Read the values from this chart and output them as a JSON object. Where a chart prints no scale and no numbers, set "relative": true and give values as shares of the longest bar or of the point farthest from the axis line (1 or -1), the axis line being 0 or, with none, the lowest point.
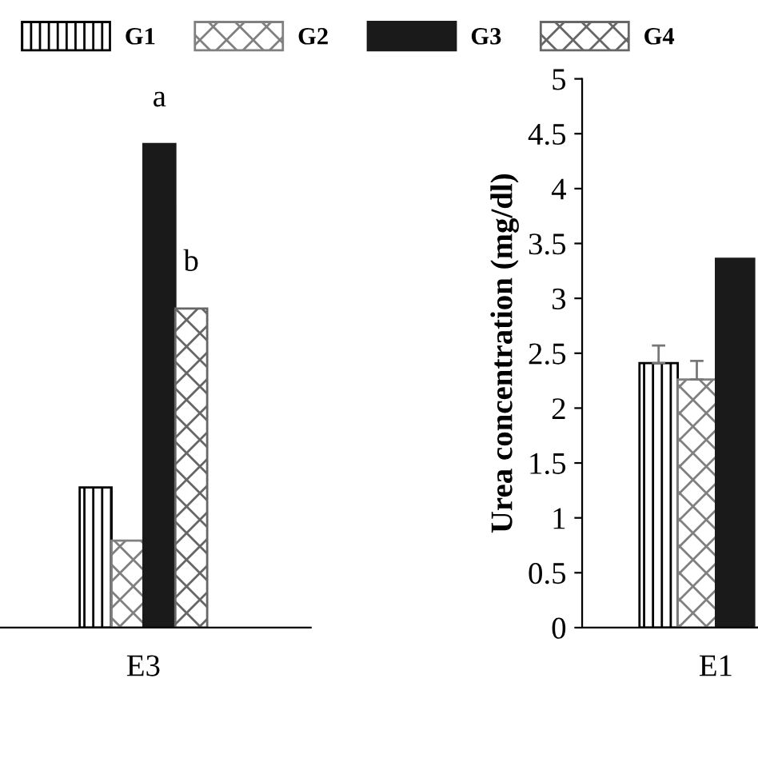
{
  "chart_data": [
    {
      "type": "bar",
      "relative": true,
      "categories": [
        "E3"
      ],
      "legend": "top",
      "series": [
        {
          "name": "G1",
          "color": "#000000",
          "values": [
            0.29
          ]
        },
        {
          "name": "G2",
          "color": "#808080",
          "values": [
            0.18
          ]
        },
        {
          "name": "G3",
          "color": "#1a1a1a",
          "values": [
            1.0
          ]
        },
        {
          "name": "G4",
          "color": "#666666",
          "values": [
            0.66
          ]
        }
      ],
      "annotations": [
        {
          "text": "a",
          "x": "E3",
          "y": 1.0
        },
        {
          "text": "b",
          "x": "E3",
          "y": 0.66
        }
      ]
    },
    {
      "type": "bar",
      "categories": [
        "E1"
      ],
      "ylabel": "Urea concentration (mg/dl)",
      "ylim": [
        0,
        5
      ],
      "yticks": [
        0,
        0.5,
        1,
        1.5,
        2,
        2.5,
        3,
        3.5,
        4,
        4.5,
        5
      ],
      "series": [
        {
          "color": "#000000",
          "values": [
            2.41
          ],
          "errors": [
            0.16
          ]
        },
        {
          "color": "#808080",
          "values": [
            2.26
          ],
          "errors": [
            0.17
          ]
        },
        {
          "color": "#1a1a1a",
          "values": [
            3.36
          ],
          "errors": [
            null
          ]
        },
        {
          "color": "#666666",
          "values": [
            null
          ],
          "errors": [
            null
          ]
        }
      ]
    }
  ]
}
